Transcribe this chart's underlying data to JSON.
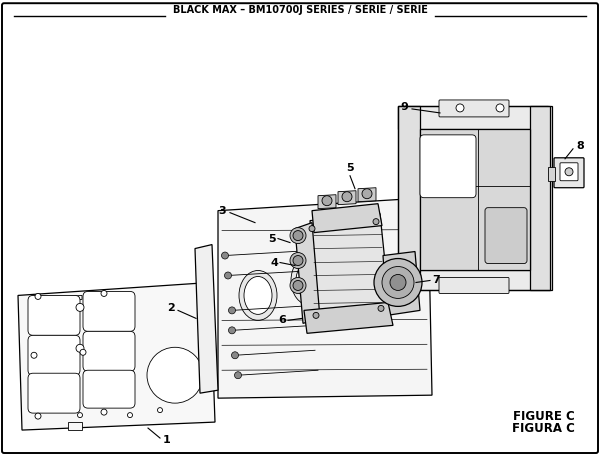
{
  "title": "BLACK MAX – BM10700J SERIES / SÉRIE / SERIE",
  "figure_label": "FIGURE C",
  "figura_label": "FIGURA C",
  "bg_color": "#ffffff",
  "line_color": "#000000",
  "text_color": "#000000",
  "fig_width": 6.0,
  "fig_height": 4.55
}
